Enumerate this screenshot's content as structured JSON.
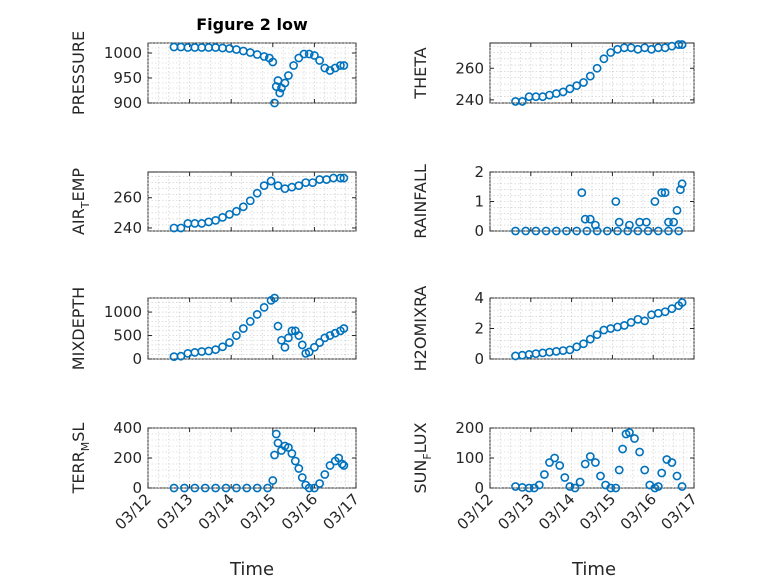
{
  "figure": {
    "title": "Figure 2 low",
    "x_axis_title": "Time",
    "x_tick_labels": [
      "03/12",
      "03/13",
      "03/14",
      "03/15",
      "03/16",
      "03/17"
    ],
    "marker_color": "#0072bd"
  },
  "chart_data": [
    {
      "type": "scatter",
      "ylabel": "PRESSURE",
      "xlabel": "",
      "xlim": [
        "03/12",
        "03/17"
      ],
      "ylim": [
        900,
        1020
      ],
      "y_ticks": [
        900,
        950,
        1000
      ],
      "grid": true,
      "series": [
        {
          "x": [
            "03/12 15:00",
            "03/12 19:00",
            "03/12 23:00",
            "03/13 03:00",
            "03/13 07:00",
            "03/13 11:00",
            "03/13 15:00",
            "03/13 19:00",
            "03/13 23:00",
            "03/14 03:00",
            "03/14 07:00",
            "03/14 11:00",
            "03/14 15:00",
            "03/14 19:00",
            "03/14 22:00",
            "03/15 00:00",
            "03/15 01:00",
            "03/15 02:00",
            "03/15 03:00",
            "03/15 04:00",
            "03/15 05:00",
            "03/15 07:00",
            "03/15 09:00",
            "03/15 12:00",
            "03/15 15:00",
            "03/15 18:00",
            "03/15 21:00",
            "03/16 00:00",
            "03/16 03:00",
            "03/16 06:00",
            "03/16 09:00",
            "03/16 12:00",
            "03/16 15:00",
            "03/16 17:00"
          ],
          "values": [
            1012,
            1012,
            1011,
            1011,
            1011,
            1011,
            1011,
            1010,
            1009,
            1007,
            1004,
            1001,
            997,
            993,
            990,
            982,
            900,
            933,
            945,
            920,
            930,
            940,
            955,
            975,
            990,
            998,
            998,
            995,
            985,
            970,
            965,
            970,
            975,
            975
          ]
        }
      ]
    },
    {
      "type": "scatter",
      "ylabel": "THETA",
      "xlabel": "",
      "xlim": [
        "03/12",
        "03/17"
      ],
      "ylim": [
        238,
        276
      ],
      "y_ticks": [
        240,
        260
      ],
      "grid": true,
      "series": [
        {
          "x": [
            "03/12 15:00",
            "03/12 19:00",
            "03/12 23:00",
            "03/13 03:00",
            "03/13 07:00",
            "03/13 11:00",
            "03/13 15:00",
            "03/13 19:00",
            "03/13 23:00",
            "03/14 03:00",
            "03/14 07:00",
            "03/14 11:00",
            "03/14 15:00",
            "03/14 19:00",
            "03/14 23:00",
            "03/15 03:00",
            "03/15 07:00",
            "03/15 11:00",
            "03/15 15:00",
            "03/15 19:00",
            "03/15 23:00",
            "03/16 03:00",
            "03/16 07:00",
            "03/16 11:00",
            "03/16 15:00",
            "03/16 17:00"
          ],
          "values": [
            239,
            239,
            242,
            242,
            242,
            243,
            244,
            245,
            247,
            249,
            251,
            255,
            260,
            266,
            270,
            272,
            273,
            273,
            272,
            273,
            272,
            273,
            273,
            274,
            275,
            275
          ]
        }
      ]
    },
    {
      "type": "scatter",
      "ylabel": "AIR_TEMP",
      "xlabel": "",
      "xlim": [
        "03/12",
        "03/17"
      ],
      "ylim": [
        238,
        277
      ],
      "y_ticks": [
        240,
        260
      ],
      "grid": true,
      "series": [
        {
          "x": [
            "03/12 15:00",
            "03/12 19:00",
            "03/12 23:00",
            "03/13 03:00",
            "03/13 07:00",
            "03/13 11:00",
            "03/13 15:00",
            "03/13 19:00",
            "03/13 23:00",
            "03/14 03:00",
            "03/14 07:00",
            "03/14 11:00",
            "03/14 15:00",
            "03/14 19:00",
            "03/14 23:00",
            "03/15 03:00",
            "03/15 07:00",
            "03/15 11:00",
            "03/15 15:00",
            "03/15 19:00",
            "03/15 23:00",
            "03/16 03:00",
            "03/16 07:00",
            "03/16 11:00",
            "03/16 15:00",
            "03/16 17:00"
          ],
          "values": [
            240,
            240,
            243,
            243,
            243,
            244,
            245,
            247,
            249,
            251,
            254,
            258,
            263,
            268,
            271,
            268,
            266,
            267,
            268,
            270,
            270,
            272,
            272,
            273,
            273,
            273
          ]
        }
      ]
    },
    {
      "type": "scatter",
      "ylabel": "RAINFALL",
      "xlabel": "",
      "xlim": [
        "03/12",
        "03/17"
      ],
      "ylim": [
        0,
        2
      ],
      "y_ticks": [
        0,
        1,
        2
      ],
      "grid": true,
      "series": [
        {
          "x": [
            "03/12 15:00",
            "03/12 21:00",
            "03/13 03:00",
            "03/13 09:00",
            "03/13 15:00",
            "03/13 21:00",
            "03/14 03:00",
            "03/14 09:00",
            "03/14 15:00",
            "03/14 21:00",
            "03/15 03:00",
            "03/15 09:00",
            "03/15 15:00",
            "03/15 21:00",
            "03/16 03:00",
            "03/16 09:00",
            "03/16 15:00",
            "03/14 06:00",
            "03/14 08:00",
            "03/14 11:00",
            "03/14 14:00",
            "03/15 02:00",
            "03/15 04:00",
            "03/15 10:00",
            "03/15 16:00",
            "03/15 20:00",
            "03/16 01:00",
            "03/16 05:00",
            "03/16 07:00",
            "03/16 09:00",
            "03/16 12:00",
            "03/16 14:00",
            "03/16 16:00",
            "03/16 17:00"
          ],
          "values": [
            0,
            0,
            0,
            0,
            0,
            0,
            0,
            0,
            0,
            0,
            0,
            0,
            0,
            0,
            0,
            0,
            0,
            1.3,
            0.4,
            0.4,
            0.2,
            1.0,
            0.3,
            0.2,
            0.3,
            0.3,
            1.0,
            1.3,
            1.3,
            0.3,
            0.3,
            0.7,
            1.4,
            1.6
          ]
        }
      ]
    },
    {
      "type": "scatter",
      "ylabel": "MIXDEPTH",
      "xlabel": "",
      "xlim": [
        "03/12",
        "03/17"
      ],
      "ylim": [
        0,
        1300
      ],
      "y_ticks": [
        0,
        500,
        1000
      ],
      "grid": true,
      "series": [
        {
          "x": [
            "03/12 15:00",
            "03/12 19:00",
            "03/12 23:00",
            "03/13 03:00",
            "03/13 07:00",
            "03/13 11:00",
            "03/13 15:00",
            "03/13 19:00",
            "03/13 23:00",
            "03/14 03:00",
            "03/14 07:00",
            "03/14 11:00",
            "03/14 15:00",
            "03/14 19:00",
            "03/14 23:00",
            "03/15 01:00",
            "03/15 03:00",
            "03/15 05:00",
            "03/15 07:00",
            "03/15 09:00",
            "03/15 11:00",
            "03/15 13:00",
            "03/15 15:00",
            "03/15 17:00",
            "03/15 19:00",
            "03/15 21:00",
            "03/16 00:00",
            "03/16 03:00",
            "03/16 06:00",
            "03/16 09:00",
            "03/16 12:00",
            "03/16 15:00",
            "03/16 17:00"
          ],
          "values": [
            50,
            60,
            120,
            140,
            160,
            170,
            200,
            260,
            350,
            500,
            650,
            800,
            950,
            1100,
            1250,
            1300,
            700,
            400,
            250,
            450,
            600,
            600,
            500,
            300,
            120,
            150,
            250,
            350,
            450,
            500,
            550,
            600,
            650
          ]
        }
      ]
    },
    {
      "type": "scatter",
      "ylabel": "H2OMIXRA",
      "xlabel": "",
      "xlim": [
        "03/12",
        "03/17"
      ],
      "ylim": [
        0,
        4
      ],
      "y_ticks": [
        0,
        2,
        4
      ],
      "grid": true,
      "series": [
        {
          "x": [
            "03/12 15:00",
            "03/12 19:00",
            "03/12 23:00",
            "03/13 03:00",
            "03/13 07:00",
            "03/13 11:00",
            "03/13 15:00",
            "03/13 19:00",
            "03/13 23:00",
            "03/14 03:00",
            "03/14 07:00",
            "03/14 11:00",
            "03/14 15:00",
            "03/14 19:00",
            "03/14 23:00",
            "03/15 03:00",
            "03/15 07:00",
            "03/15 11:00",
            "03/15 15:00",
            "03/15 19:00",
            "03/15 23:00",
            "03/16 03:00",
            "03/16 07:00",
            "03/16 11:00",
            "03/16 15:00",
            "03/16 17:00"
          ],
          "values": [
            0.2,
            0.25,
            0.3,
            0.35,
            0.4,
            0.45,
            0.5,
            0.55,
            0.6,
            0.8,
            1.0,
            1.3,
            1.6,
            1.9,
            2.0,
            2.1,
            2.2,
            2.4,
            2.6,
            2.5,
            2.9,
            3.0,
            3.1,
            3.3,
            3.5,
            3.7
          ]
        }
      ]
    },
    {
      "type": "scatter",
      "ylabel": "TERR_MSL",
      "xlabel": "",
      "xlim": [
        "03/12",
        "03/17"
      ],
      "ylim": [
        0,
        400
      ],
      "y_ticks": [
        0,
        200,
        400
      ],
      "grid": true,
      "series": [
        {
          "x": [
            "03/12 15:00",
            "03/12 21:00",
            "03/13 03:00",
            "03/13 09:00",
            "03/13 15:00",
            "03/13 21:00",
            "03/14 03:00",
            "03/14 09:00",
            "03/14 15:00",
            "03/14 21:00",
            "03/15 00:00",
            "03/15 01:00",
            "03/15 02:00",
            "03/15 03:00",
            "03/15 05:00",
            "03/15 07:00",
            "03/15 09:00",
            "03/15 11:00",
            "03/15 13:00",
            "03/15 15:00",
            "03/15 17:00",
            "03/15 19:00",
            "03/15 21:00",
            "03/16 00:00",
            "03/16 03:00",
            "03/16 06:00",
            "03/16 09:00",
            "03/16 12:00",
            "03/16 14:00",
            "03/16 16:00",
            "03/16 17:00"
          ],
          "values": [
            0,
            0,
            0,
            0,
            0,
            0,
            0,
            0,
            0,
            0,
            50,
            220,
            360,
            300,
            250,
            280,
            270,
            230,
            180,
            130,
            70,
            20,
            0,
            0,
            30,
            90,
            150,
            180,
            200,
            160,
            150
          ]
        }
      ]
    },
    {
      "type": "scatter",
      "ylabel": "SUN_FLUX",
      "xlabel": "",
      "xlim": [
        "03/12",
        "03/17"
      ],
      "ylim": [
        0,
        200
      ],
      "y_ticks": [
        0,
        100,
        200
      ],
      "grid": true,
      "series": [
        {
          "x": [
            "03/12 15:00",
            "03/12 19:00",
            "03/12 23:00",
            "03/13 02:00",
            "03/13 05:00",
            "03/13 08:00",
            "03/13 11:00",
            "03/13 14:00",
            "03/13 17:00",
            "03/13 20:00",
            "03/13 23:00",
            "03/14 02:00",
            "03/14 05:00",
            "03/14 08:00",
            "03/14 11:00",
            "03/14 14:00",
            "03/14 17:00",
            "03/14 20:00",
            "03/14 23:00",
            "03/15 02:00",
            "03/15 04:00",
            "03/15 06:00",
            "03/15 08:00",
            "03/15 10:00",
            "03/15 13:00",
            "03/15 16:00",
            "03/15 19:00",
            "03/15 22:00",
            "03/16 01:00",
            "03/16 03:00",
            "03/16 05:00",
            "03/16 08:00",
            "03/16 11:00",
            "03/16 14:00",
            "03/16 17:00"
          ],
          "values": [
            5,
            2,
            0,
            0,
            10,
            45,
            85,
            100,
            75,
            35,
            5,
            0,
            20,
            80,
            105,
            85,
            40,
            10,
            0,
            0,
            60,
            130,
            180,
            185,
            165,
            120,
            60,
            10,
            0,
            5,
            50,
            95,
            85,
            40,
            5
          ]
        }
      ]
    }
  ]
}
